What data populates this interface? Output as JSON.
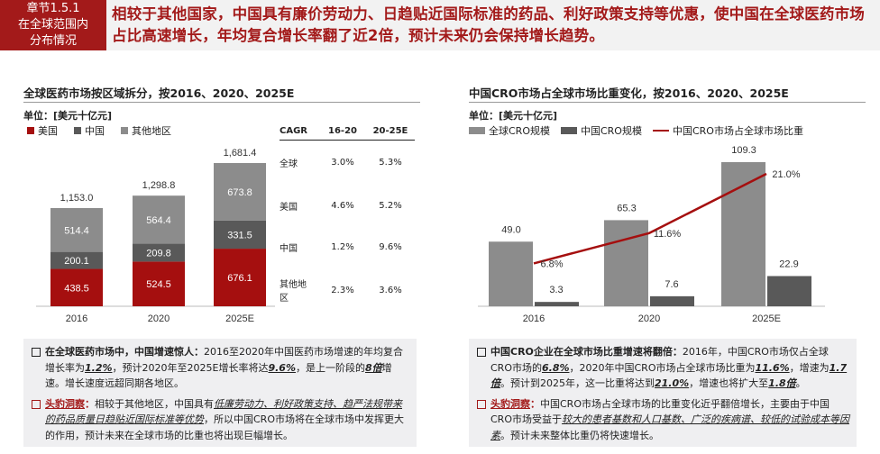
{
  "header": {
    "section_line1": "章节1.5.1",
    "section_line2": "在全球范围内",
    "section_line3": "分布情况",
    "headline": "相较于其他国家，中国具有廉价劳动力、日趋贴近国际标准的药品、利好政策支持等优惠，使中国在全球医药市场占比高速增长，年均复合增长率翻了近2倍，预计未来仍会保持增长趋势。"
  },
  "left": {
    "title": "全球医药市场按区域拆分，按2016、2020、2025E",
    "unit": "单位：[美元十亿元]",
    "cagr": {
      "header": [
        "CAGR",
        "16-20",
        "20-25E"
      ],
      "rows": [
        [
          "全球",
          "3.0%",
          "5.3%"
        ],
        [
          "美国",
          "4.6%",
          "5.2%"
        ],
        [
          "中国",
          "1.2%",
          "9.6%"
        ],
        [
          "其他地区",
          "2.3%",
          "3.6%"
        ]
      ]
    },
    "note1": {
      "bold": "在全球医药市场中，中国增速惊人：",
      "t1": "2016至2020年中国医药市场增速的年均复合增长率为",
      "v1": "1.2%",
      "t2": "，预计2020年至2025E增长率将达",
      "v2": "9.6%",
      "t3": "，是上一阶段的",
      "v3": "8倍",
      "t4": "增速。增长速度远超同期各地区。"
    },
    "note2": {
      "label": "头豹洞察",
      "colon": "：",
      "t1": "相较于其他地区，中国具有",
      "u1": "低廉劳动力、利好政策支持、趋严法规带来的药品质量日趋贴近国际标准等优势",
      "t2": "，所以中国CRO市场将在全球市场中发挥更大的作用，预计未来在全球市场的比重也将出现巨幅增长。"
    }
  },
  "right": {
    "title": "中国CRO市场占全球市场比重变化，按2016、2020、2025E",
    "unit": "单位：[美元十亿元]",
    "note1": {
      "bold": "中国CRO企业在全球市场比重增速将翻倍：",
      "t1": "2016年，中国CRO市场仅占全球CRO市场的",
      "v1": "6.8%",
      "t2": "，2020年中国CRO市场占全球市场比重为",
      "v2": "11.6%",
      "t3": "，增速为",
      "v3": "1.7倍",
      "t4": "。预计到2025年，这一比重将达到",
      "v4": "21.0%",
      "t5": "，增速也将扩大至",
      "v5": "1.8倍",
      "t6": "。"
    },
    "note2": {
      "label": "头豹洞察",
      "colon": "：",
      "t1": "中国CRO市场占全球市场的比重变化近乎翻倍增长，主要由于中国CRO市场受益于",
      "u1": "较大的患者基数和人口基数、广泛的疾病谱、较低的试验成本等因素",
      "t2": "。预计未来整体比重仍将快速增长。"
    }
  },
  "chart_data": [
    {
      "type": "bar",
      "stacked": true,
      "categories": [
        "2016",
        "2020",
        "2025E"
      ],
      "series": [
        {
          "name": "美国",
          "color": "#a50f0f",
          "values": [
            438.5,
            524.5,
            676.1
          ]
        },
        {
          "name": "中国",
          "color": "#595959",
          "values": [
            200.1,
            209.8,
            331.5
          ]
        },
        {
          "name": "其他地区",
          "color": "#8c8c8c",
          "values": [
            514.4,
            564.4,
            673.8
          ]
        }
      ],
      "totals": [
        "1,153.0",
        "1,298.8",
        "1,681.4"
      ],
      "ylim": [
        0,
        1800
      ]
    },
    {
      "type": "bar+line",
      "categories": [
        "2016",
        "2020",
        "2025E"
      ],
      "series": [
        {
          "name": "全球CRO规模",
          "color": "#8c8c8c",
          "values": [
            49.0,
            65.3,
            109.3
          ],
          "labels": [
            "49.0",
            "65.3",
            "109.3"
          ]
        },
        {
          "name": "中国CRO规模",
          "color": "#595959",
          "values": [
            3.3,
            7.6,
            22.9
          ],
          "labels": [
            "3.3",
            "7.6",
            "22.9"
          ]
        },
        {
          "name": "中国CRO市场占全球市场比重",
          "color": "#a50f0f",
          "type": "line",
          "values": [
            6.8,
            11.6,
            21.0
          ],
          "labels": [
            "6.8%",
            "11.6%",
            "21.0%"
          ]
        }
      ],
      "ylim": [
        0,
        120
      ],
      "y2lim": [
        0,
        30
      ]
    }
  ]
}
